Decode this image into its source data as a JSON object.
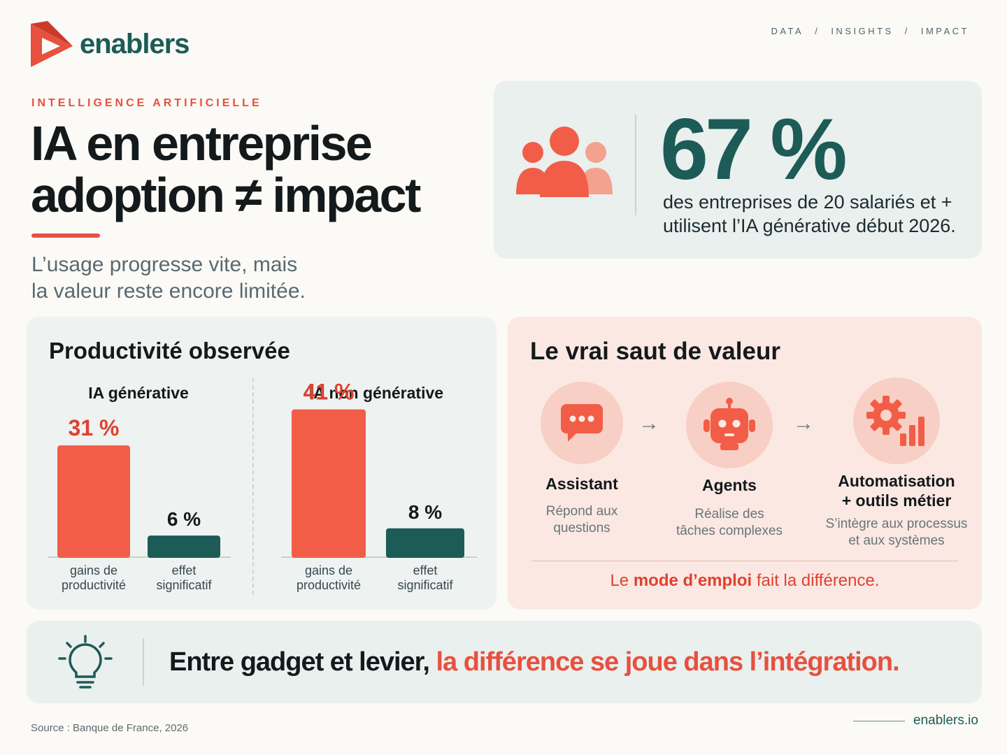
{
  "brand": {
    "name": "enablers",
    "site": "enablers.io",
    "accent": "#e8503f",
    "primary": "#1d5b57"
  },
  "breadcrumb": [
    "DATA",
    "/",
    "INSIGHTS",
    "/",
    "IMPACT"
  ],
  "hero": {
    "kicker": "INTELLIGENCE ARTIFICIELLE",
    "title_line1": "IA en entreprise",
    "title_line2": "adoption ≠ impact",
    "subtitle_line1": "L’usage progresse vite, mais",
    "subtitle_line2": "la valeur reste encore limitée."
  },
  "stat": {
    "icon": "people-group-icon",
    "value": "67 %",
    "desc_line1": "des entreprises de 20 salariés et +",
    "desc_line2": "utilisent l’IA générative début 2026."
  },
  "productivity": {
    "title": "Productivité observée"
  },
  "chart_data": [
    {
      "type": "bar",
      "title": "IA générative",
      "categories": [
        "gains de productivité",
        "effet significatif"
      ],
      "values": [
        31,
        6
      ],
      "labels": [
        "31 %",
        "6 %"
      ],
      "colors": [
        "#f25d47",
        "#1d5b57"
      ],
      "ylim": [
        0,
        45
      ]
    },
    {
      "type": "bar",
      "title": "IA non générative",
      "categories": [
        "gains de productivité",
        "effet significatif"
      ],
      "values": [
        41,
        8
      ],
      "labels": [
        "41 %",
        "8 %"
      ],
      "colors": [
        "#f25d47",
        "#1d5b57"
      ],
      "ylim": [
        0,
        45
      ]
    }
  ],
  "value": {
    "title": "Le vrai saut de valeur",
    "steps": [
      {
        "icon": "chat-bubble-icon",
        "label": "Assistant",
        "desc_line1": "Répond aux",
        "desc_line2": "questions"
      },
      {
        "icon": "robot-icon",
        "label": "Agents",
        "desc_line1": "Réalise des",
        "desc_line2": "tâches complexes"
      },
      {
        "icon": "gear-chart-icon",
        "label_line1": "Automatisation",
        "label_line2": "+ outils métier",
        "desc_line1": "S’intègre aux processus",
        "desc_line2": "et aux systèmes"
      }
    ],
    "arrow": "→",
    "foot_pre": "Le ",
    "foot_bold": "mode d’emploi",
    "foot_post": " fait la différence."
  },
  "banner": {
    "icon": "lightbulb-icon",
    "text_lead": "Entre gadget et levier, ",
    "text_accent": "la différence se joue dans l’intégration."
  },
  "footer": {
    "source": "Source : Banque de France, 2026"
  }
}
